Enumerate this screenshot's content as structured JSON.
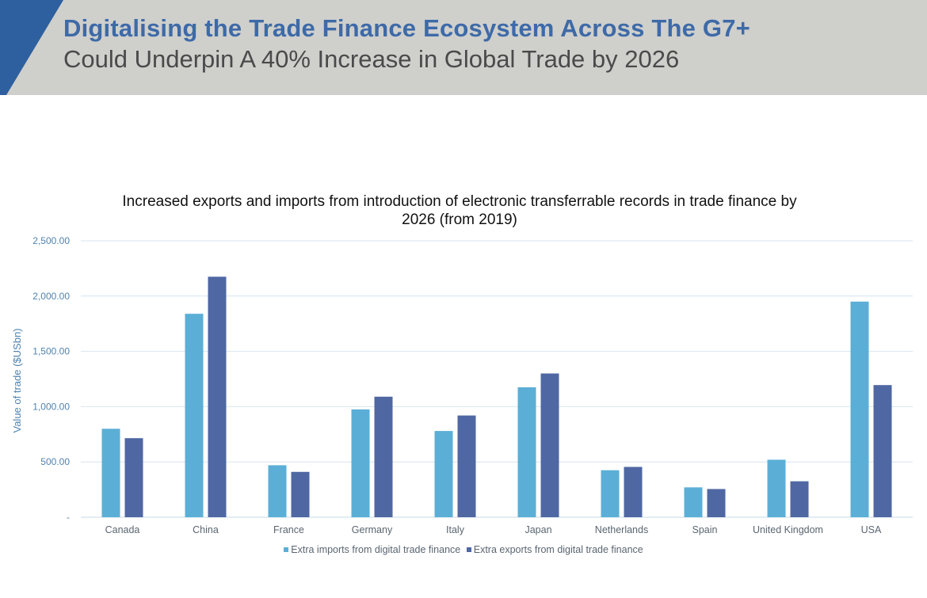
{
  "header": {
    "title": "Digitalising the Trade Finance Ecosystem Across The G7+",
    "subtitle": "Could Underpin A 40% Increase in Global Trade by 2026",
    "accent_color": "#2e5f9e",
    "background_color": "#cfcfcc"
  },
  "chart_data": {
    "type": "bar",
    "title_line1": "Increased exports and imports from introduction of electronic transferrable records in trade finance by",
    "title_line2": "2026 (from 2019)",
    "ylabel": "Value of trade ($USbn)",
    "ylim": [
      0,
      2500
    ],
    "yticks": [
      {
        "value": 0,
        "label": "-"
      },
      {
        "value": 500,
        "label": "500.00"
      },
      {
        "value": 1000,
        "label": "1,000.00"
      },
      {
        "value": 1500,
        "label": "1,500.00"
      },
      {
        "value": 2000,
        "label": "2,000.00"
      },
      {
        "value": 2500,
        "label": "2,500.00"
      }
    ],
    "grid": true,
    "legend_position": "bottom",
    "categories": [
      "Canada",
      "China",
      "France",
      "Germany",
      "Italy",
      "Japan",
      "Netherlands",
      "Spain",
      "United Kingdom",
      "USA"
    ],
    "series": [
      {
        "name": "Extra imports from digital trade finance",
        "color": "#5bafd6",
        "values": [
          800,
          1840,
          470,
          975,
          780,
          1175,
          425,
          270,
          520,
          1950
        ]
      },
      {
        "name": "Extra exports from digital trade finance",
        "color": "#4f68a3",
        "values": [
          715,
          2175,
          410,
          1090,
          920,
          1300,
          455,
          255,
          325,
          1195
        ]
      }
    ]
  }
}
